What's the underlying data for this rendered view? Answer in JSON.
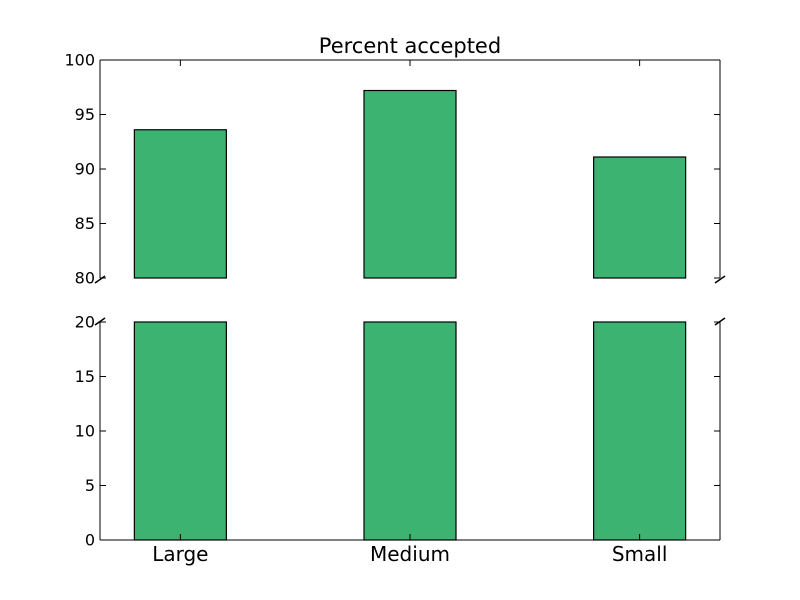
{
  "chart_data": {
    "type": "bar",
    "title": "Percent accepted",
    "xlabel": "",
    "ylabel": "",
    "categories": [
      "Large",
      "Medium",
      "Small"
    ],
    "values": [
      93.6,
      97.2,
      91.1
    ],
    "axis_break": true,
    "upper_ylim": [
      80,
      100
    ],
    "lower_ylim": [
      0,
      20
    ],
    "upper_yticks": [
      "80",
      "85",
      "90",
      "95",
      "100"
    ],
    "lower_yticks": [
      "0",
      "5",
      "10",
      "15",
      "20"
    ],
    "bar_color": "#3cb371",
    "edge_color": "#000000",
    "grid": false,
    "legend": "none"
  }
}
